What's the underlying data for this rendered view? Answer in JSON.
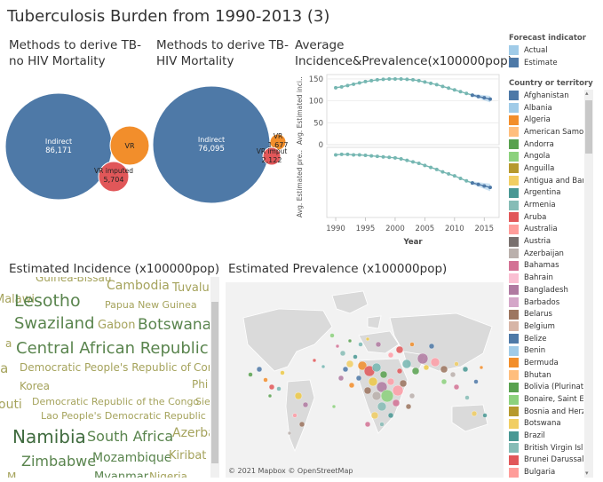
{
  "dashboard": {
    "title": "Tuberculosis Burden from 1990-2013 (3)"
  },
  "panels": {
    "no_hiv": {
      "title": "Methods to derive TB-no HIV Mortality"
    },
    "hiv": {
      "title": "Methods to derive TB-HIV Mortality"
    },
    "avg": {
      "title": "Average Incidence&Prevalence(x100000pop)"
    },
    "incidence": {
      "title": "Estimated Incidence (x100000pop)"
    },
    "prevalence": {
      "title": "Estimated Prevalence (x100000pop)"
    }
  },
  "map": {
    "attribution": "© 2021 Mapbox © OpenStreetMap"
  },
  "colors": {
    "blue": "#4e79a7",
    "orange": "#f28e2b",
    "red": "#e15759",
    "teal": "#76b7b2",
    "olive": "#a5a35c",
    "green": "#59844d"
  },
  "forecast_legend": {
    "title": "Forecast indicator",
    "items": [
      {
        "label": "Actual",
        "color": "#a0cbe8"
      },
      {
        "label": "Estimate",
        "color": "#4e79a7"
      }
    ]
  },
  "country_legend": {
    "title": "Country or territory na..",
    "items": [
      {
        "label": "Afghanistan",
        "color": "#4e79a7"
      },
      {
        "label": "Albania",
        "color": "#a0cbe8"
      },
      {
        "label": "Algeria",
        "color": "#f28e2b"
      },
      {
        "label": "American Samoa",
        "color": "#ffbe7d"
      },
      {
        "label": "Andorra",
        "color": "#59a14f"
      },
      {
        "label": "Angola",
        "color": "#8cd17d"
      },
      {
        "label": "Anguilla",
        "color": "#b6992d"
      },
      {
        "label": "Antigua and Bar..",
        "color": "#f1ce63"
      },
      {
        "label": "Argentina",
        "color": "#499894"
      },
      {
        "label": "Armenia",
        "color": "#86bcb6"
      },
      {
        "label": "Aruba",
        "color": "#e15759"
      },
      {
        "label": "Australia",
        "color": "#ff9d9a"
      },
      {
        "label": "Austria",
        "color": "#79706e"
      },
      {
        "label": "Azerbaijan",
        "color": "#bab0ac"
      },
      {
        "label": "Bahamas",
        "color": "#d37295"
      },
      {
        "label": "Bahrain",
        "color": "#fabfd2"
      },
      {
        "label": "Bangladesh",
        "color": "#b07aa1"
      },
      {
        "label": "Barbados",
        "color": "#d4a6c8"
      },
      {
        "label": "Belarus",
        "color": "#9d7660"
      },
      {
        "label": "Belgium",
        "color": "#d7b5a6"
      },
      {
        "label": "Belize",
        "color": "#4e79a7"
      },
      {
        "label": "Benin",
        "color": "#a0cbe8"
      },
      {
        "label": "Bermuda",
        "color": "#f28e2b"
      },
      {
        "label": "Bhutan",
        "color": "#ffbe7d"
      },
      {
        "label": "Bolivia (Plurinat..",
        "color": "#59a14f"
      },
      {
        "label": "Bonaire, Saint E..",
        "color": "#8cd17d"
      },
      {
        "label": "Bosnia and Herz..",
        "color": "#b6992d"
      },
      {
        "label": "Botswana",
        "color": "#f1ce63"
      },
      {
        "label": "Brazil",
        "color": "#499894"
      },
      {
        "label": "British Virgin Isl..",
        "color": "#86bcb6"
      },
      {
        "label": "Brunei Darussal..",
        "color": "#e15759"
      },
      {
        "label": "Bulgaria",
        "color": "#ff9d9a"
      }
    ]
  },
  "chart_data": [
    {
      "type": "bubble",
      "title": "Methods to derive TB-no HIV Mortality",
      "items": [
        {
          "label": "Indirect",
          "value": 86171,
          "display": "86,171",
          "color": "#4e79a7"
        },
        {
          "label": "VR",
          "value": null,
          "display": "",
          "color": "#f28e2b"
        },
        {
          "label": "VR imputed",
          "value": 5704,
          "display": "5,704",
          "color": "#e15759"
        }
      ]
    },
    {
      "type": "bubble",
      "title": "Methods to derive TB-HIV Mortality",
      "items": [
        {
          "label": "Indirect",
          "value": 76095,
          "display": "76,095",
          "color": "#4e79a7"
        },
        {
          "label": "VR",
          "value": 1677,
          "display": "1,677",
          "color": "#f28e2b"
        },
        {
          "label": "VR imput",
          "value": 2122,
          "display": "2,122",
          "color": "#e15759"
        }
      ]
    },
    {
      "type": "line",
      "title": "Average Incidence&Prevalence(x100000pop)",
      "x": [
        1990,
        1991,
        1992,
        1993,
        1994,
        1995,
        1996,
        1997,
        1998,
        1999,
        2000,
        2001,
        2002,
        2003,
        2004,
        2005,
        2006,
        2007,
        2008,
        2009,
        2010,
        2011,
        2012,
        2013,
        2014,
        2015,
        2016
      ],
      "xlabel": "Year",
      "xticks": [
        1990,
        1995,
        2000,
        2005,
        2010,
        2015
      ],
      "panels": [
        {
          "ylabel": "Avg. Estimated inci..",
          "yticks": [
            0,
            50,
            100,
            150
          ],
          "ylim": [
            0,
            160
          ],
          "actual": [
            130,
            132,
            135,
            138,
            141,
            144,
            146,
            148,
            149,
            150,
            150,
            150,
            149,
            148,
            146,
            143,
            140,
            137,
            133,
            129,
            125,
            121,
            117,
            113
          ],
          "estimate": [
            113,
            110,
            107,
            104
          ]
        },
        {
          "ylabel": "Avg. Estimated pre..",
          "yticks": [],
          "ylim": [
            100,
            240
          ],
          "actual": [
            225,
            226,
            226,
            225,
            225,
            224,
            223,
            222,
            221,
            220,
            219,
            217,
            214,
            211,
            208,
            204,
            200,
            196,
            191,
            187,
            183,
            178,
            173,
            169
          ],
          "estimate": [
            169,
            166,
            163,
            160
          ]
        }
      ]
    },
    {
      "type": "word_cloud",
      "title": "Estimated Incidence (x100000pop)",
      "words": [
        {
          "text": "Guinea-Bissau",
          "color": "#a5a35c",
          "size": 12
        },
        {
          "text": "Malawi",
          "color": "#a5a35c",
          "size": 13
        },
        {
          "text": "Cambodia",
          "color": "#a5a35c",
          "size": 14
        },
        {
          "text": "Tuvalu",
          "color": "#a5a35c",
          "size": 13
        },
        {
          "text": "Lesotho",
          "color": "#59844d",
          "size": 19
        },
        {
          "text": "Papua New Guinea",
          "color": "#a5a35c",
          "size": 11
        },
        {
          "text": "Swaziland",
          "color": "#59844d",
          "size": 18
        },
        {
          "text": "Gabon",
          "color": "#a5a35c",
          "size": 13
        },
        {
          "text": "Botswana",
          "color": "#59844d",
          "size": 17
        },
        {
          "text": "a",
          "color": "#a5a35c",
          "size": 12
        },
        {
          "text": "Central African Republic",
          "color": "#59844d",
          "size": 18
        },
        {
          "text": "ia",
          "color": "#a5a35c",
          "size": 15
        },
        {
          "text": "Democratic People's Republic of",
          "color": "#a5a35c",
          "size": 12
        },
        {
          "text": "Cor",
          "color": "#a5a35c",
          "size": 12
        },
        {
          "text": "Korea",
          "color": "#a5a35c",
          "size": 12
        },
        {
          "text": "Phi",
          "color": "#a5a35c",
          "size": 12
        },
        {
          "text": "outi",
          "color": "#a5a35c",
          "size": 14
        },
        {
          "text": "Democratic Republic of the Congo",
          "color": "#a5a35c",
          "size": 11
        },
        {
          "text": "Sie",
          "color": "#a5a35c",
          "size": 11
        },
        {
          "text": "Lao People's Democratic Republic",
          "color": "#a5a35c",
          "size": 11
        },
        {
          "text": "Namibia",
          "color": "#3f6b3e",
          "size": 20
        },
        {
          "text": "South Africa",
          "color": "#59844d",
          "size": 16
        },
        {
          "text": "Azerba",
          "color": "#a5a35c",
          "size": 14
        },
        {
          "text": "Zimbabwe",
          "color": "#59844d",
          "size": 16
        },
        {
          "text": "Mozambique",
          "color": "#59844d",
          "size": 14
        },
        {
          "text": "Kiribat",
          "color": "#a5a35c",
          "size": 13
        },
        {
          "text": "M",
          "color": "#a5a35c",
          "size": 12
        },
        {
          "text": "Myanmar",
          "color": "#59844d",
          "size": 13
        },
        {
          "text": "Nigeria",
          "color": "#a5a35c",
          "size": 12
        }
      ]
    }
  ]
}
